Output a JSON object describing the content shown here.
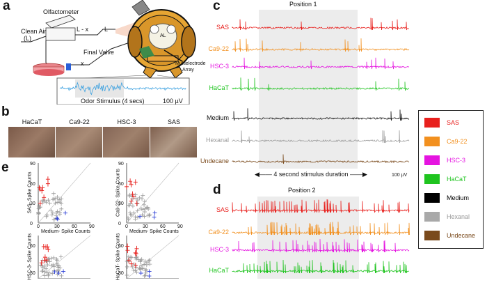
{
  "panels": {
    "a": "a",
    "b": "b",
    "c": "c",
    "d": "d",
    "e": "e"
  },
  "panel_a": {
    "olfactometer": "Olfactometer",
    "clean_air": "Clean Air",
    "clean_air_L": "(L)",
    "L_minus_x": "L - x",
    "L": "L",
    "final_valve": "Final Valve",
    "x": "x",
    "multielectrode": "Multielectrode",
    "array": "Array",
    "odor_stimulus": "Odor Stimulus (4 secs)",
    "scale": "100 µV",
    "AL": "AL"
  },
  "panel_b": {
    "labels": [
      "HaCaT",
      "Ca9-22",
      "HSC-3",
      "SAS"
    ]
  },
  "panel_c": {
    "title": "Position 1",
    "traces": [
      {
        "label": "SAS",
        "color": "#e8201d"
      },
      {
        "label": "Ca9-22",
        "color": "#f2901f"
      },
      {
        "label": "HSC-3",
        "color": "#e514e0"
      },
      {
        "label": "HaCaT",
        "color": "#1fc41f"
      },
      {
        "label": "Medium",
        "color": "#111111"
      },
      {
        "label": "Hexanal",
        "color": "#9c9c9c"
      },
      {
        "label": "Undecane",
        "color": "#7a4a1c"
      }
    ],
    "duration": "4 second stimulus duration",
    "scale": "100 µV"
  },
  "panel_d": {
    "title": "Position 2",
    "traces": [
      {
        "label": "SAS",
        "color": "#e8201d"
      },
      {
        "label": "Ca9-22",
        "color": "#f2901f"
      },
      {
        "label": "HSC-3",
        "color": "#e514e0"
      },
      {
        "label": "HaCaT",
        "color": "#1fc41f"
      }
    ]
  },
  "legend": [
    {
      "label": "SAS",
      "color": "#e8201d"
    },
    {
      "label": "Ca9-22",
      "color": "#f2901f"
    },
    {
      "label": "HSC-3",
      "color": "#e514e0"
    },
    {
      "label": "HaCaT",
      "color": "#1fc41f"
    },
    {
      "label": "Medium",
      "color": "#000000"
    },
    {
      "label": "Hexanal",
      "color": "#a9a9a9"
    },
    {
      "label": "Undecane",
      "color": "#7a4a1c"
    }
  ],
  "panel_e": {
    "plot1": {
      "ylabel": "SAS- Spike Counts",
      "xlabel": "Medium- Spike Counts",
      "yticks": [
        "90",
        "60",
        "30",
        "0"
      ],
      "xticks": [
        "0",
        "30",
        "60",
        "90"
      ]
    },
    "plot2": {
      "ylabel": "Ca9-22- Spike Counts",
      "xlabel": "Medium- Spike Counts",
      "yticks": [
        "90",
        "60",
        "30",
        "0"
      ],
      "xticks": [
        "0",
        "30",
        "60",
        "90"
      ]
    },
    "plot3": {
      "ylabel": "HSC-3- Spike Counts",
      "yticks": [
        "60",
        "30"
      ]
    },
    "plot4": {
      "ylabel": "HaCaT- Spike Counts",
      "yticks": [
        "60",
        "30"
      ]
    }
  }
}
